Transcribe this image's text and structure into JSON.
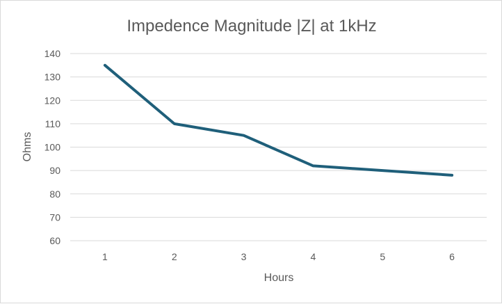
{
  "chart_data": {
    "type": "line",
    "title": "Impedence Magnitude |Z| at 1kHz",
    "xlabel": "Hours",
    "ylabel": "Ohms",
    "categories": [
      "1",
      "2",
      "3",
      "4",
      "5",
      "6"
    ],
    "series": [
      {
        "values": [
          135,
          110,
          105,
          92,
          90,
          88
        ],
        "color": "#1f5f7a"
      }
    ],
    "ylim": [
      60,
      140
    ],
    "yticks": [
      "60",
      "70",
      "80",
      "90",
      "100",
      "110",
      "120",
      "130",
      "140"
    ],
    "grid": true,
    "legend": "none"
  }
}
